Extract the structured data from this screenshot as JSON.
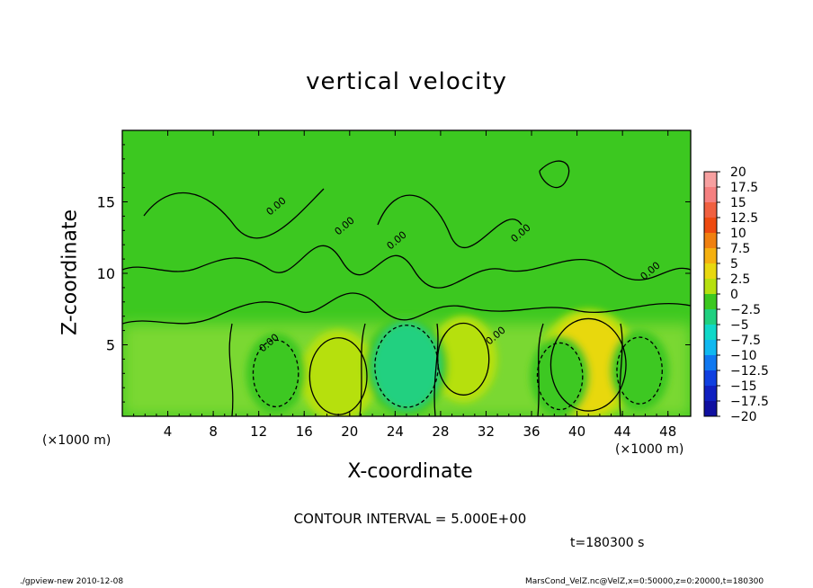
{
  "chart_data": {
    "type": "heatmap",
    "title": "vertical velocity",
    "xlabel": "X-coordinate",
    "ylabel": "Z-coordinate",
    "x_unit_label": "(×1000 m)",
    "xlim": [
      0,
      50
    ],
    "ylim": [
      0,
      20
    ],
    "x_ticks": [
      "4",
      "8",
      "12",
      "16",
      "20",
      "24",
      "28",
      "32",
      "36",
      "40",
      "44",
      "48"
    ],
    "y_ticks": [
      "5",
      "10",
      "15"
    ],
    "contour_interval": "CONTOUR INTERVAL = 5.000E+00",
    "contour_labels": [
      "0.00",
      "0.00",
      "0.00",
      "0.00",
      "0.00",
      "0.00",
      "0.00"
    ],
    "time_label": "t=180300 s",
    "colorbar": {
      "levels": [
        "20",
        "17.5",
        "15",
        "12.5",
        "10",
        "7.5",
        "5",
        "2.5",
        "0",
        "−2.5",
        "−5",
        "−7.5",
        "−10",
        "−12.5",
        "−15",
        "−17.5",
        "−20"
      ],
      "colors": [
        "#f7a0a0",
        "#f58080",
        "#f06040",
        "#ee4a10",
        "#f08010",
        "#f5b010",
        "#e8d810",
        "#b6e010",
        "#3cc820",
        "#20d080",
        "#10d8c8",
        "#10b8f0",
        "#1078f0",
        "#1040e0",
        "#1020c0",
        "#1010a0",
        "#7010c0"
      ]
    },
    "cells": [
      {
        "x": 19,
        "z": 2.8,
        "w": 2.5,
        "label": "positive"
      },
      {
        "x": 30,
        "z": 4.0,
        "w": 2.0,
        "label": "positive"
      },
      {
        "x": 41,
        "z": 3.6,
        "w": 4.0,
        "label": "positive"
      },
      {
        "x": 25,
        "z": 3.5,
        "w": -3.0,
        "label": "negative"
      },
      {
        "x": 13.5,
        "z": 3.0,
        "w": -1.5,
        "label": "negative"
      },
      {
        "x": 38.5,
        "z": 2.8,
        "w": -1.5,
        "label": "negative"
      },
      {
        "x": 45.5,
        "z": 3.2,
        "w": -1.5,
        "label": "negative"
      }
    ],
    "footer_left": "./gpview-new   2010-12-08",
    "footer_right": "MarsCond_VelZ.nc@VelZ,x=0:50000,z=0:20000,t=180300"
  }
}
